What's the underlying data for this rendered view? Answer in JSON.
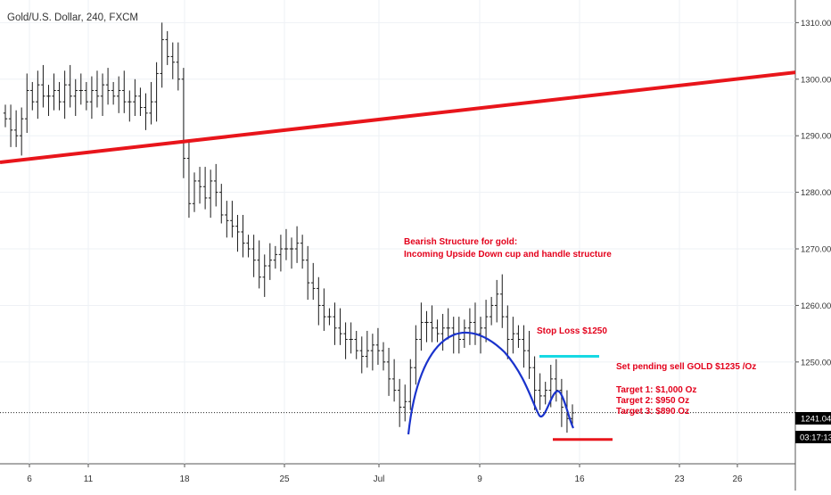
{
  "chart_data": {
    "type": "candlestick",
    "title": "Gold/U.S. Dollar, 240, FXCM",
    "x_tick_labels": [
      "6",
      "11",
      "18",
      "25",
      "Jul",
      "9",
      "16",
      "23",
      "26"
    ],
    "y_tick_labels": [
      "1310.00",
      "1300.00",
      "1290.00",
      "1280.00",
      "1270.00",
      "1260.00",
      "1250.00"
    ],
    "ylim": [
      1232,
      1314
    ],
    "grid": true,
    "series": [
      {
        "name": "Close",
        "values": [
          1293,
          1291,
          1290,
          1293,
          1298,
          1296,
          1299,
          1297,
          1297,
          1298,
          1296,
          1299,
          1297,
          1298,
          1298,
          1296,
          1298,
          1297,
          1299,
          1298,
          1297,
          1298,
          1296,
          1296,
          1297,
          1295,
          1294,
          1296,
          1301,
          1307,
          1304,
          1303,
          1300,
          1286,
          1278,
          1282,
          1281,
          1279,
          1282,
          1280,
          1276,
          1275,
          1274,
          1273,
          1271,
          1270,
          1268,
          1265,
          1267,
          1268,
          1269,
          1270,
          1270,
          1270,
          1271,
          1268,
          1264,
          1263,
          1260,
          1258,
          1258,
          1256,
          1255,
          1254,
          1254,
          1252,
          1251,
          1252,
          1253,
          1252,
          1250,
          1247,
          1245,
          1242,
          1243,
          1249,
          1254,
          1257,
          1257,
          1256,
          1255,
          1256,
          1256,
          1255,
          1254,
          1256,
          1257,
          1255,
          1256,
          1258,
          1260,
          1262,
          1258,
          1254,
          1255,
          1254,
          1252,
          1249,
          1245,
          1244,
          1245,
          1247,
          1245,
          1242,
          1240,
          1241
        ]
      }
    ],
    "annotations": [
      {
        "text": "Bearish Structure for gold:",
        "color": "#e3001b"
      },
      {
        "text": "Incoming Upside Down cup and handle structure",
        "color": "#e3001b"
      },
      {
        "text": "Stop Loss $1250",
        "color": "#e3001b"
      },
      {
        "text": "Set pending sell GOLD $1235 /Oz",
        "color": "#e3001b"
      },
      {
        "text": "Target 1: $1,000 Oz",
        "color": "#e3001b"
      },
      {
        "text": "Target 2: $950 Oz",
        "color": "#e3001b"
      },
      {
        "text": "Target 3: $890 Oz",
        "color": "#e3001b"
      }
    ],
    "price_label": "1241.04",
    "countdown_label": "03:17:13",
    "trendline": {
      "color": "#e8151b"
    },
    "stop_loss_line": {
      "price": 1251,
      "color": "#17d9e3"
    },
    "target_line": {
      "price": 1236.3,
      "color": "#e8151b"
    },
    "cup_curve": {
      "color": "#1a33cc"
    },
    "colors": {
      "bars": "#1a1a1a",
      "annotation": "#e3001b",
      "price_tag": "#000000"
    }
  }
}
